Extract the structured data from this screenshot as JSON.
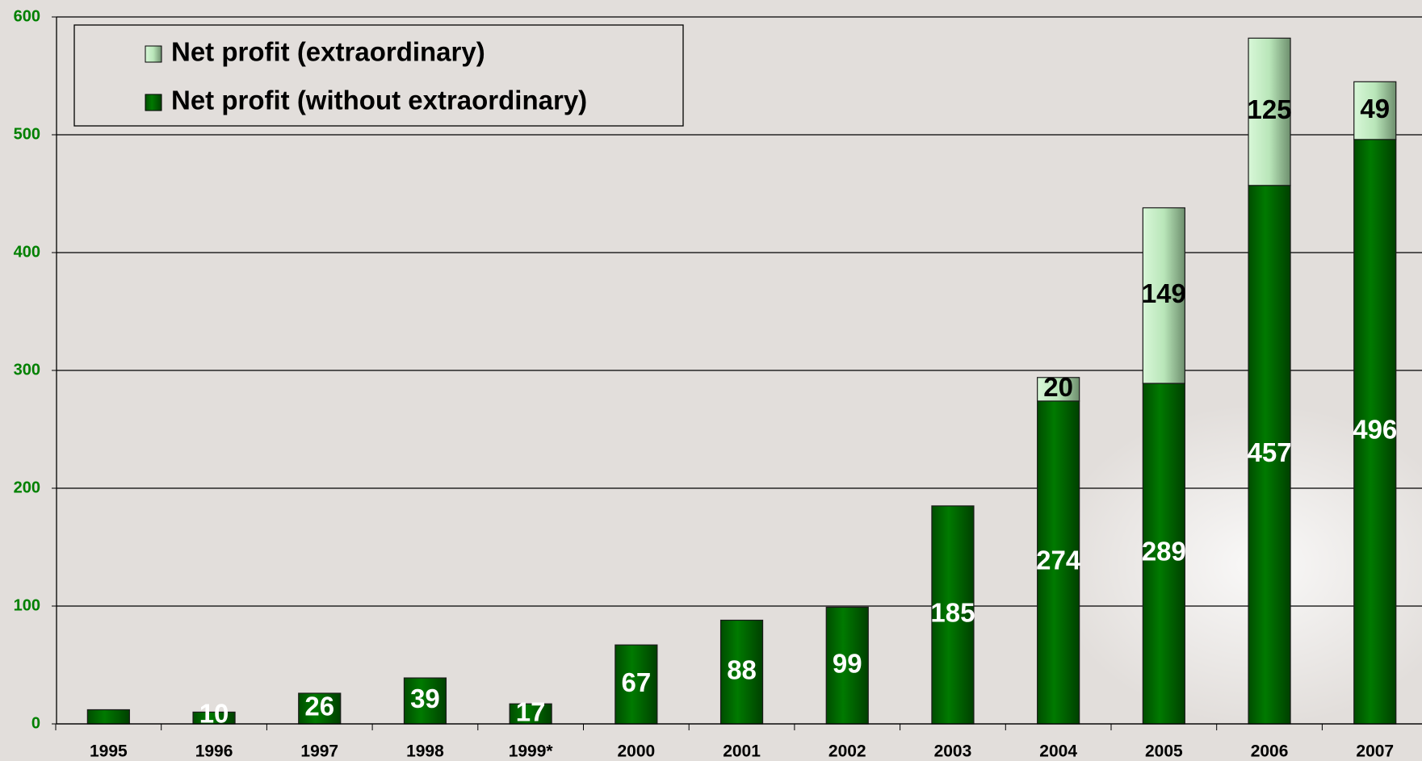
{
  "chart_data": {
    "type": "stacked_bar",
    "categories": [
      "1995",
      "1996",
      "1997",
      "1998",
      "1999*",
      "2000",
      "2001",
      "2002",
      "2003",
      "2004",
      "2005",
      "2006",
      "2007"
    ],
    "series": [
      {
        "name": "Net profit (without extraordinary)",
        "color": "#006b00",
        "values": [
          12,
          10,
          26,
          39,
          17,
          67,
          88,
          99,
          185,
          274,
          289,
          457,
          496
        ],
        "value_labels": [
          null,
          "10",
          "26",
          "39",
          "17",
          "67",
          "88",
          "99",
          "185",
          "274",
          "289",
          "457",
          "496"
        ]
      },
      {
        "name": "Net profit (extraordinary)",
        "color": "#c6efc6",
        "values": [
          null,
          null,
          null,
          null,
          null,
          null,
          null,
          null,
          null,
          20,
          149,
          125,
          49
        ],
        "value_labels": [
          null,
          null,
          null,
          null,
          null,
          null,
          null,
          null,
          null,
          "20",
          "149",
          "125",
          "49"
        ]
      }
    ],
    "ylim": [
      0,
      600
    ],
    "yticks": [
      0,
      100,
      200,
      300,
      400,
      500,
      600
    ],
    "grid": true,
    "legend": "upper left"
  }
}
